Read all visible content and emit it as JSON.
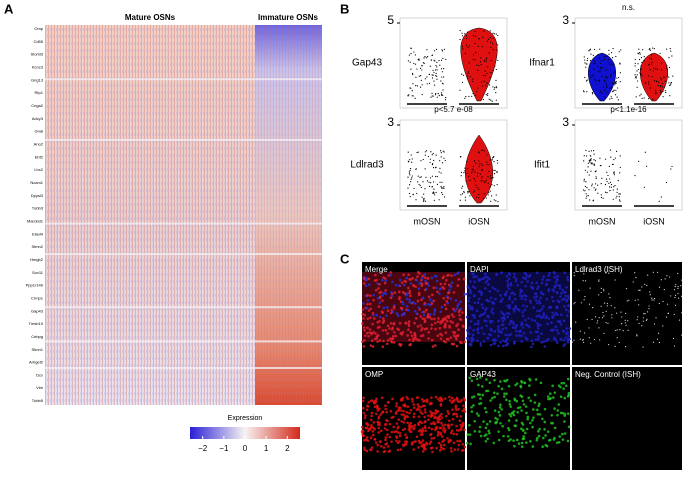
{
  "panel_a": {
    "letter": "A",
    "group_labels": [
      "Mature OSNs",
      "Immature OSNs"
    ],
    "genes": [
      "Omp",
      "Cd55",
      "Stoml3",
      "Kcnc3",
      "Gng13",
      "Rtp1",
      "Cnga2",
      "Adcy3",
      "Gnal",
      "Ano2",
      "Ebf2",
      "Lhx2",
      "Ncam1",
      "Dpysl3",
      "Tubb3",
      "Marcksl1",
      "Elavl4",
      "Stmn2",
      "Hmgb2",
      "Sox11",
      "Ppp1r14b",
      "Crmp1",
      "Gap43",
      "Tmsb10",
      "Cebpg",
      "Stmn1",
      "Arhgef2",
      "Dcx",
      "Vim",
      "Tubb5"
    ],
    "colorbar": {
      "title": "Expression",
      "lim": [
        -2.6,
        2.6
      ],
      "ticks": [
        {
          "value": -2,
          "label": "−2"
        },
        {
          "value": -1,
          "label": "−1"
        },
        0,
        1,
        2
      ]
    }
  },
  "panel_b": {
    "letter": "B",
    "plots": [
      {
        "gene": "Gap43",
        "ytick": 5,
        "note": null
      },
      {
        "gene": "Ifnar1",
        "ytick": 3,
        "note": "n.s."
      },
      {
        "gene": "Ldlrad3",
        "ytick": 3,
        "note": "p<5.7 e-08"
      },
      {
        "gene": "Ifit1",
        "ytick": 3,
        "note": "p<1.1e-16"
      }
    ],
    "groups": [
      "mOSN",
      "iOSN"
    ]
  },
  "panel_c": {
    "letter": "C",
    "images": [
      "Merge",
      "DAPI",
      "Ldlrad3 (ISH)",
      "OMP",
      "GAP43",
      "Neg. Control (ISH)"
    ]
  }
}
